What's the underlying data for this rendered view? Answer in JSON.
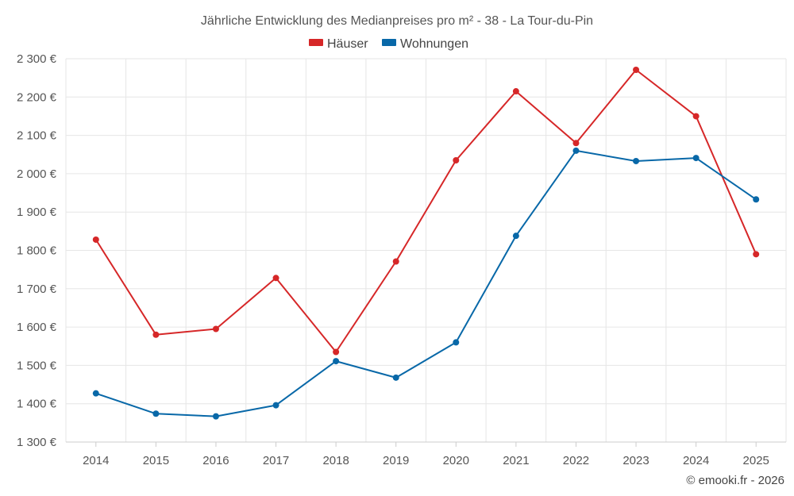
{
  "chart_data": {
    "type": "line",
    "title": "Jährliche Entwicklung des Medianpreises pro m² - 38 - La Tour-du-Pin",
    "categories": [
      "2014",
      "2015",
      "2016",
      "2017",
      "2018",
      "2019",
      "2020",
      "2021",
      "2022",
      "2023",
      "2024",
      "2025"
    ],
    "series": [
      {
        "name": "Häuser",
        "color": "#d62728",
        "values": [
          1828,
          1580,
          1595,
          1728,
          1535,
          1771,
          2035,
          2215,
          2080,
          2271,
          2150,
          1790
        ]
      },
      {
        "name": "Wohnungen",
        "color": "#0868a8",
        "values": [
          1427,
          1374,
          1367,
          1396,
          1511,
          1468,
          1560,
          1838,
          2060,
          2033,
          2041,
          1933
        ]
      }
    ],
    "ylim": [
      1300,
      2300
    ],
    "yticks": [
      1300,
      1400,
      1500,
      1600,
      1700,
      1800,
      1900,
      2000,
      2100,
      2200,
      2300
    ],
    "ytick_labels": [
      "1 300 €",
      "1 400 €",
      "1 500 €",
      "1 600 €",
      "1 700 €",
      "1 800 €",
      "1 900 €",
      "2 000 €",
      "2 100 €",
      "2 200 €",
      "2 300 €"
    ],
    "legend": "top",
    "grid": true,
    "credit": "© emooki.fr - 2026"
  }
}
